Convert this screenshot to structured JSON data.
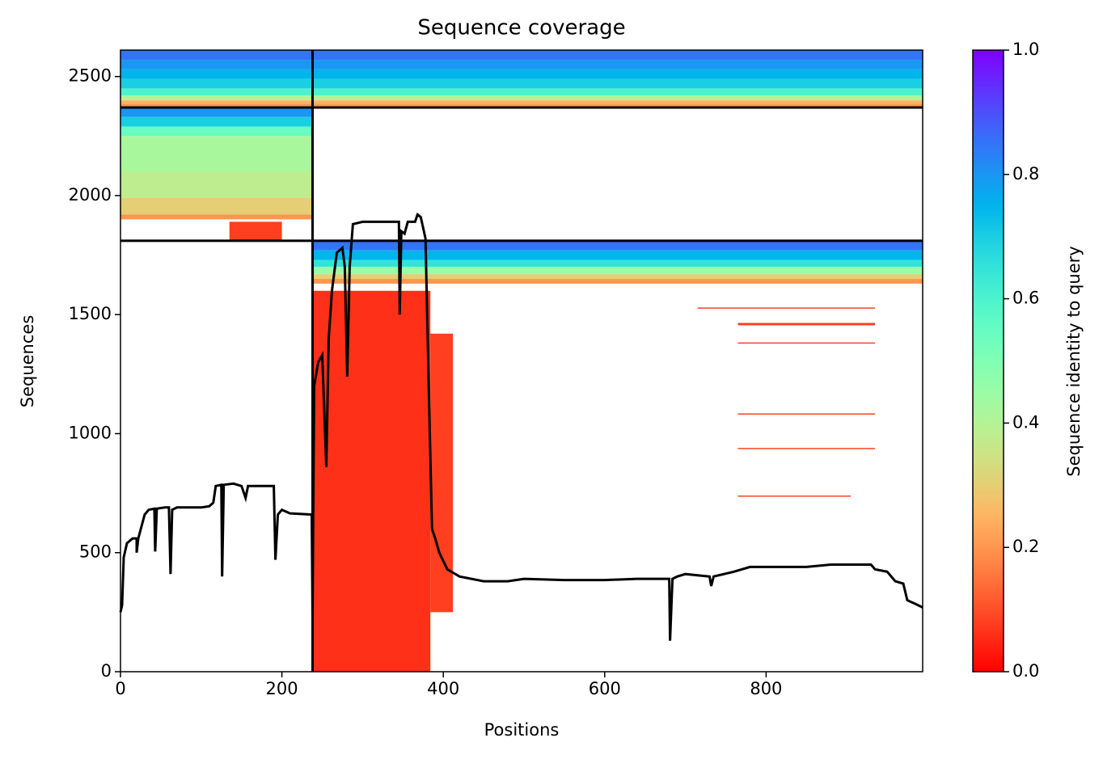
{
  "chart_data": {
    "type": "coverage",
    "title": "Sequence coverage",
    "xlabel": "Positions",
    "ylabel": "Sequences",
    "xlim": [
      0,
      994
    ],
    "ylim": [
      0,
      2611
    ],
    "xticks": [
      0,
      200,
      400,
      600,
      800
    ],
    "yticks": [
      0,
      500,
      1000,
      1500,
      2000,
      2500
    ],
    "colorbar": {
      "label": "Sequence identity to query",
      "lim": [
        0,
        1
      ],
      "ticks": [
        {
          "value": 0,
          "label": "0.0"
        },
        0.2,
        0.4,
        0.6,
        0.8,
        {
          "value": 1,
          "label": "1.0"
        }
      ]
    },
    "dividers_x": [
      238
    ],
    "dividers_y": [
      1810,
      2370
    ],
    "blocks": [
      {
        "x": [
          0,
          994
        ],
        "y": [
          2570,
          2611
        ],
        "identity": 0.85
      },
      {
        "x": [
          0,
          994
        ],
        "y": [
          2530,
          2570
        ],
        "identity": 0.8
      },
      {
        "x": [
          0,
          994
        ],
        "y": [
          2490,
          2530
        ],
        "identity": 0.75
      },
      {
        "x": [
          0,
          994
        ],
        "y": [
          2450,
          2490
        ],
        "identity": 0.7
      },
      {
        "x": [
          0,
          994
        ],
        "y": [
          2420,
          2450
        ],
        "identity": 0.6
      },
      {
        "x": [
          0,
          994
        ],
        "y": [
          2400,
          2420
        ],
        "identity": 0.4
      },
      {
        "x": [
          0,
          994
        ],
        "y": [
          2385,
          2400
        ],
        "identity": 0.25
      },
      {
        "x": [
          0,
          994
        ],
        "y": [
          2370,
          2385
        ],
        "identity": 0.2
      },
      {
        "x": [
          0,
          238
        ],
        "y": [
          2330,
          2370
        ],
        "identity": 0.8
      },
      {
        "x": [
          0,
          238
        ],
        "y": [
          2290,
          2330
        ],
        "identity": 0.7
      },
      {
        "x": [
          0,
          238
        ],
        "y": [
          2250,
          2290
        ],
        "identity": 0.55
      },
      {
        "x": [
          0,
          238
        ],
        "y": [
          2100,
          2250
        ],
        "identity": 0.42
      },
      {
        "x": [
          0,
          238
        ],
        "y": [
          1990,
          2100
        ],
        "identity": 0.38
      },
      {
        "x": [
          0,
          238
        ],
        "y": [
          1920,
          1990
        ],
        "identity": 0.3
      },
      {
        "x": [
          0,
          238
        ],
        "y": [
          1900,
          1920
        ],
        "identity": 0.2
      },
      {
        "x": [
          135,
          200
        ],
        "y": [
          1810,
          1890
        ],
        "identity": 0.08
      },
      {
        "x": [
          238,
          994
        ],
        "y": [
          1770,
          1810
        ],
        "identity": 0.85
      },
      {
        "x": [
          238,
          994
        ],
        "y": [
          1730,
          1770
        ],
        "identity": 0.75
      },
      {
        "x": [
          238,
          994
        ],
        "y": [
          1700,
          1730
        ],
        "identity": 0.65
      },
      {
        "x": [
          238,
          994
        ],
        "y": [
          1670,
          1700
        ],
        "identity": 0.45
      },
      {
        "x": [
          238,
          994
        ],
        "y": [
          1650,
          1670
        ],
        "identity": 0.3
      },
      {
        "x": [
          238,
          994
        ],
        "y": [
          1630,
          1650
        ],
        "identity": 0.2
      },
      {
        "x": [
          238,
          384
        ],
        "y": [
          0,
          1600
        ],
        "identity": 0.06
      },
      {
        "x": [
          384,
          412
        ],
        "y": [
          250,
          1420
        ],
        "identity": 0.08
      },
      {
        "x": [
          715,
          935
        ],
        "y": [
          1525,
          1530
        ],
        "identity": 0.08
      },
      {
        "x": [
          765,
          935
        ],
        "y": [
          1455,
          1465
        ],
        "identity": 0.08
      },
      {
        "x": [
          765,
          935
        ],
        "y": [
          1378,
          1383
        ],
        "identity": 0.08
      },
      {
        "x": [
          765,
          935
        ],
        "y": [
          1080,
          1085
        ],
        "identity": 0.08
      },
      {
        "x": [
          765,
          935
        ],
        "y": [
          935,
          940
        ],
        "identity": 0.08
      },
      {
        "x": [
          765,
          905
        ],
        "y": [
          735,
          740
        ],
        "identity": 0.08
      }
    ],
    "coverage": {
      "color": "#000000",
      "x": [
        0,
        2,
        4,
        8,
        15,
        20,
        20,
        22,
        30,
        35,
        42,
        43,
        45,
        55,
        60,
        62,
        64,
        70,
        100,
        110,
        115,
        118,
        125,
        126,
        128,
        140,
        150,
        155,
        158,
        175,
        190,
        192,
        195,
        200,
        210,
        237,
        238,
        240,
        245,
        250,
        255,
        258,
        262,
        268,
        275,
        278,
        281,
        284,
        288,
        300,
        330,
        345,
        346,
        348,
        352,
        356,
        365,
        368,
        372,
        378,
        382,
        386,
        390,
        395,
        405,
        420,
        450,
        480,
        500,
        550,
        600,
        640,
        680,
        681,
        684,
        690,
        700,
        730,
        732,
        735,
        760,
        780,
        820,
        850,
        880,
        930,
        935,
        950,
        960,
        970,
        975,
        985,
        994
      ],
      "y": [
        250,
        280,
        480,
        540,
        560,
        560,
        500,
        560,
        660,
        680,
        685,
        505,
        685,
        690,
        690,
        410,
        680,
        690,
        690,
        695,
        710,
        780,
        785,
        400,
        785,
        790,
        780,
        730,
        780,
        780,
        780,
        470,
        660,
        680,
        665,
        660,
        230,
        1200,
        1300,
        1330,
        860,
        1400,
        1600,
        1760,
        1780,
        1700,
        1240,
        1700,
        1880,
        1890,
        1890,
        1890,
        1500,
        1850,
        1840,
        1890,
        1890,
        1920,
        1910,
        1820,
        1200,
        600,
        560,
        500,
        430,
        400,
        380,
        380,
        390,
        385,
        385,
        390,
        390,
        130,
        390,
        400,
        410,
        400,
        360,
        400,
        420,
        440,
        440,
        440,
        450,
        450,
        430,
        420,
        380,
        370,
        300,
        285,
        270
      ]
    }
  }
}
